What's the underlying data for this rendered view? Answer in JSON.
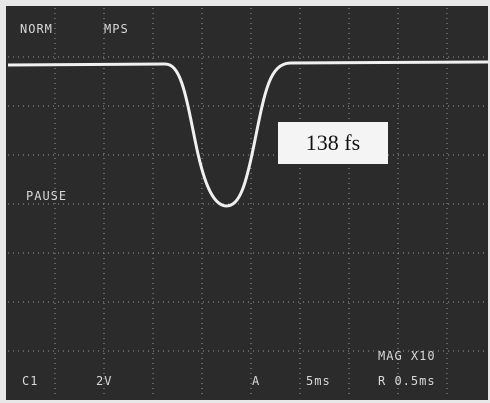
{
  "screen": {
    "mode": "NORM",
    "mode2": "MPS",
    "measurement": "138 fs",
    "status": "PAUSE",
    "channel": "C1",
    "volts": "2V",
    "trigger": "A",
    "timebase": "5ms",
    "mag": "MAG X10",
    "delay": "R 0.5ms"
  }
}
